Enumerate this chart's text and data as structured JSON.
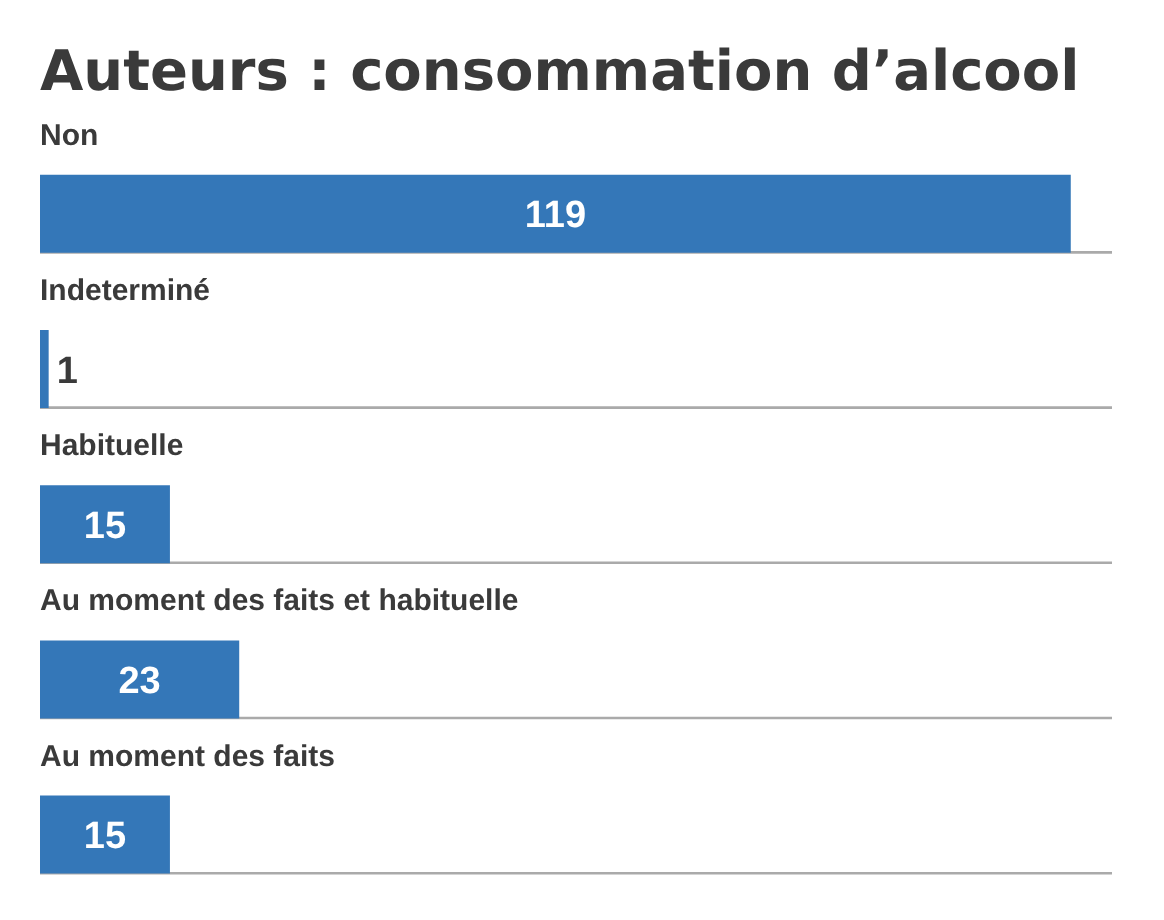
{
  "chart_data": {
    "type": "bar",
    "title": "Auteurs : consommation d’alcool",
    "orientation": "horizontal",
    "categories": [
      "Non",
      "Indeterminé",
      "Habituelle",
      "Au moment des faits et habituelle",
      "Au moment des faits"
    ],
    "values": [
      119,
      1,
      15,
      23,
      15
    ],
    "color": "#3477b8",
    "data_labels": true,
    "grid": "y",
    "tick_labels": "y"
  }
}
